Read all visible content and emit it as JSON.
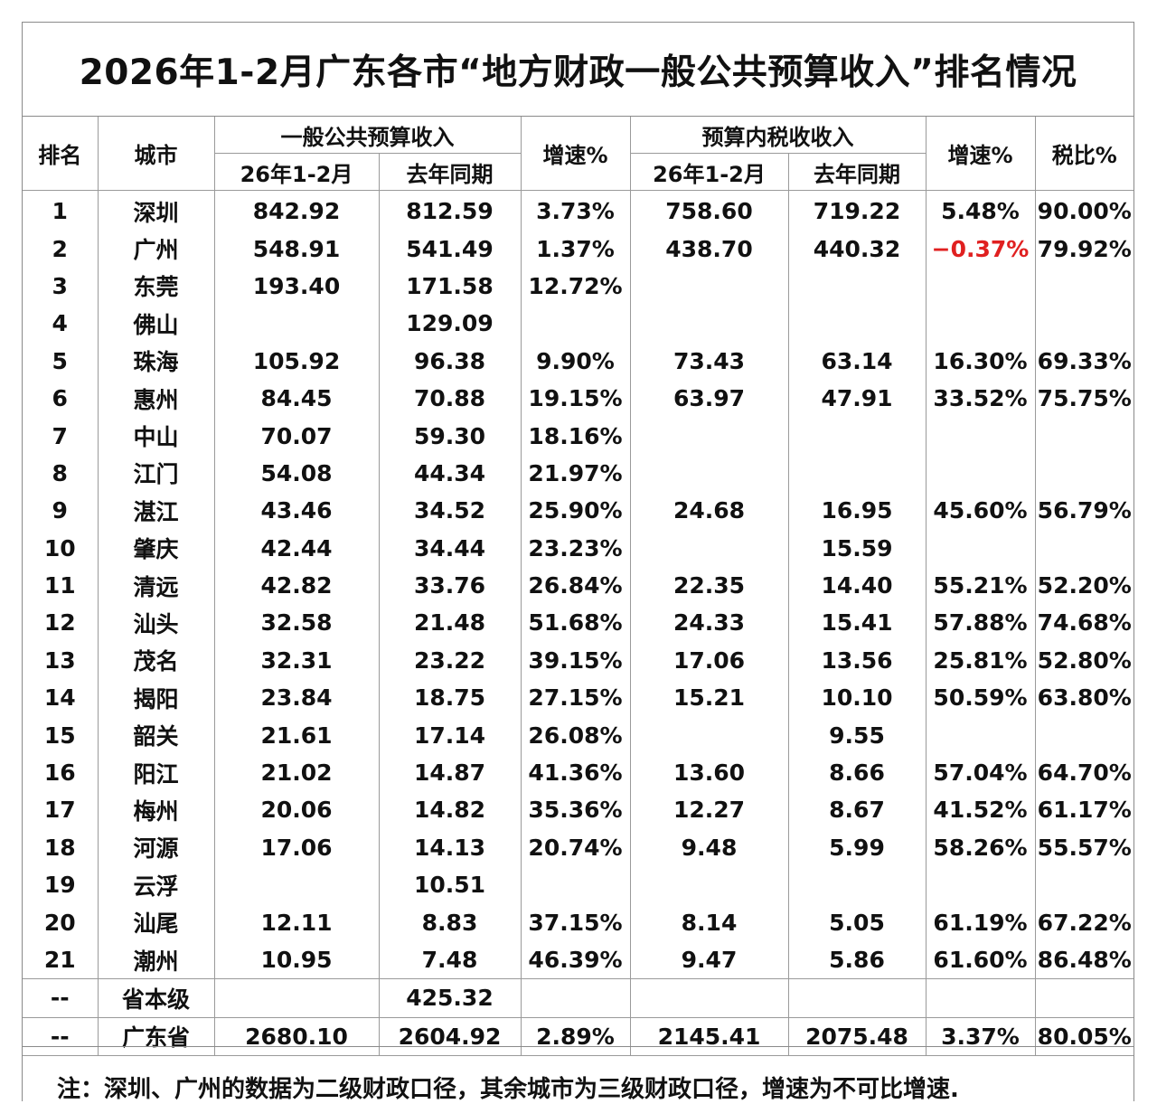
{
  "title": "2026年1-2月广东各市“地方财政一般公共预算收入”排名情况",
  "headers": {
    "rank": "排名",
    "city": "城市",
    "general_budget": "一般公共预算收入",
    "tax_budget": "预算内税收收入",
    "growth": "增速%",
    "tax_ratio": "税比%",
    "current": "26年1-2月",
    "last_year": "去年同期"
  },
  "negative_color": "#e02020",
  "rows": [
    {
      "rank": "1",
      "city": "深圳",
      "gen_cur": "842.92",
      "gen_prev": "812.59",
      "gen_growth": "3.73%",
      "tax_cur": "758.60",
      "tax_prev": "719.22",
      "tax_growth": "5.48%",
      "ratio": "90.00%"
    },
    {
      "rank": "2",
      "city": "广州",
      "gen_cur": "548.91",
      "gen_prev": "541.49",
      "gen_growth": "1.37%",
      "tax_cur": "438.70",
      "tax_prev": "440.32",
      "tax_growth": "−0.37%",
      "ratio": "79.92%"
    },
    {
      "rank": "3",
      "city": "东莞",
      "gen_cur": "193.40",
      "gen_prev": "171.58",
      "gen_growth": "12.72%",
      "tax_cur": "",
      "tax_prev": "",
      "tax_growth": "",
      "ratio": ""
    },
    {
      "rank": "4",
      "city": "佛山",
      "gen_cur": "",
      "gen_prev": "129.09",
      "gen_growth": "",
      "tax_cur": "",
      "tax_prev": "",
      "tax_growth": "",
      "ratio": ""
    },
    {
      "rank": "5",
      "city": "珠海",
      "gen_cur": "105.92",
      "gen_prev": "96.38",
      "gen_growth": "9.90%",
      "tax_cur": "73.43",
      "tax_prev": "63.14",
      "tax_growth": "16.30%",
      "ratio": "69.33%"
    },
    {
      "rank": "6",
      "city": "惠州",
      "gen_cur": "84.45",
      "gen_prev": "70.88",
      "gen_growth": "19.15%",
      "tax_cur": "63.97",
      "tax_prev": "47.91",
      "tax_growth": "33.52%",
      "ratio": "75.75%"
    },
    {
      "rank": "7",
      "city": "中山",
      "gen_cur": "70.07",
      "gen_prev": "59.30",
      "gen_growth": "18.16%",
      "tax_cur": "",
      "tax_prev": "",
      "tax_growth": "",
      "ratio": ""
    },
    {
      "rank": "8",
      "city": "江门",
      "gen_cur": "54.08",
      "gen_prev": "44.34",
      "gen_growth": "21.97%",
      "tax_cur": "",
      "tax_prev": "",
      "tax_growth": "",
      "ratio": ""
    },
    {
      "rank": "9",
      "city": "湛江",
      "gen_cur": "43.46",
      "gen_prev": "34.52",
      "gen_growth": "25.90%",
      "tax_cur": "24.68",
      "tax_prev": "16.95",
      "tax_growth": "45.60%",
      "ratio": "56.79%"
    },
    {
      "rank": "10",
      "city": "肇庆",
      "gen_cur": "42.44",
      "gen_prev": "34.44",
      "gen_growth": "23.23%",
      "tax_cur": "",
      "tax_prev": "15.59",
      "tax_growth": "",
      "ratio": ""
    },
    {
      "rank": "11",
      "city": "清远",
      "gen_cur": "42.82",
      "gen_prev": "33.76",
      "gen_growth": "26.84%",
      "tax_cur": "22.35",
      "tax_prev": "14.40",
      "tax_growth": "55.21%",
      "ratio": "52.20%"
    },
    {
      "rank": "12",
      "city": "汕头",
      "gen_cur": "32.58",
      "gen_prev": "21.48",
      "gen_growth": "51.68%",
      "tax_cur": "24.33",
      "tax_prev": "15.41",
      "tax_growth": "57.88%",
      "ratio": "74.68%"
    },
    {
      "rank": "13",
      "city": "茂名",
      "gen_cur": "32.31",
      "gen_prev": "23.22",
      "gen_growth": "39.15%",
      "tax_cur": "17.06",
      "tax_prev": "13.56",
      "tax_growth": "25.81%",
      "ratio": "52.80%"
    },
    {
      "rank": "14",
      "city": "揭阳",
      "gen_cur": "23.84",
      "gen_prev": "18.75",
      "gen_growth": "27.15%",
      "tax_cur": "15.21",
      "tax_prev": "10.10",
      "tax_growth": "50.59%",
      "ratio": "63.80%"
    },
    {
      "rank": "15",
      "city": "韶关",
      "gen_cur": "21.61",
      "gen_prev": "17.14",
      "gen_growth": "26.08%",
      "tax_cur": "",
      "tax_prev": "9.55",
      "tax_growth": "",
      "ratio": ""
    },
    {
      "rank": "16",
      "city": "阳江",
      "gen_cur": "21.02",
      "gen_prev": "14.87",
      "gen_growth": "41.36%",
      "tax_cur": "13.60",
      "tax_prev": "8.66",
      "tax_growth": "57.04%",
      "ratio": "64.70%"
    },
    {
      "rank": "17",
      "city": "梅州",
      "gen_cur": "20.06",
      "gen_prev": "14.82",
      "gen_growth": "35.36%",
      "tax_cur": "12.27",
      "tax_prev": "8.67",
      "tax_growth": "41.52%",
      "ratio": "61.17%"
    },
    {
      "rank": "18",
      "city": "河源",
      "gen_cur": "17.06",
      "gen_prev": "14.13",
      "gen_growth": "20.74%",
      "tax_cur": "9.48",
      "tax_prev": "5.99",
      "tax_growth": "58.26%",
      "ratio": "55.57%"
    },
    {
      "rank": "19",
      "city": "云浮",
      "gen_cur": "",
      "gen_prev": "10.51",
      "gen_growth": "",
      "tax_cur": "",
      "tax_prev": "",
      "tax_growth": "",
      "ratio": ""
    },
    {
      "rank": "20",
      "city": "汕尾",
      "gen_cur": "12.11",
      "gen_prev": "8.83",
      "gen_growth": "37.15%",
      "tax_cur": "8.14",
      "tax_prev": "5.05",
      "tax_growth": "61.19%",
      "ratio": "67.22%"
    },
    {
      "rank": "21",
      "city": "潮州",
      "gen_cur": "10.95",
      "gen_prev": "7.48",
      "gen_growth": "46.39%",
      "tax_cur": "9.47",
      "tax_prev": "5.86",
      "tax_growth": "61.60%",
      "ratio": "86.48%"
    },
    {
      "rank": "--",
      "city": "省本级",
      "gen_cur": "",
      "gen_prev": "425.32",
      "gen_growth": "",
      "tax_cur": "",
      "tax_prev": "",
      "tax_growth": "",
      "ratio": ""
    },
    {
      "rank": "--",
      "city": "广东省",
      "gen_cur": "2680.10",
      "gen_prev": "2604.92",
      "gen_growth": "2.89%",
      "tax_cur": "2145.41",
      "tax_prev": "2075.48",
      "tax_growth": "3.37%",
      "ratio": "80.05%"
    }
  ],
  "note": "注：深圳、广州的数据为二级财政口径，其余城市为三级财政口径，增速为不可比增速."
}
